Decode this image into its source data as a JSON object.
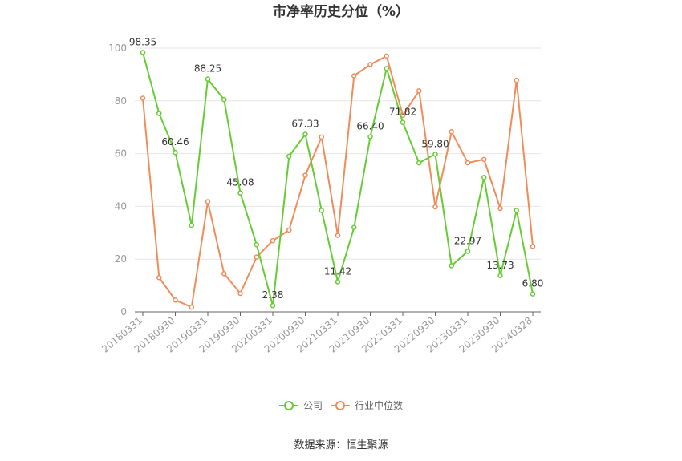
{
  "chart_data": {
    "type": "line",
    "title": "市净率历史分位（%）",
    "xlabel": "",
    "ylabel": "",
    "ylim": [
      0,
      100
    ],
    "yticks": [
      0,
      20,
      40,
      60,
      80,
      100
    ],
    "grid": true,
    "legend_position": "bottom",
    "x": [
      "20180331",
      "20180630",
      "20180930",
      "20181231",
      "20190331",
      "20190630",
      "20190930",
      "20191231",
      "20200331",
      "20200630",
      "20200930",
      "20201231",
      "20210331",
      "20210630",
      "20210930",
      "20211231",
      "20220331",
      "20220630",
      "20220930",
      "20221231",
      "20230331",
      "20230630",
      "20230930",
      "20231231",
      "20240328"
    ],
    "x_tick_labels": [
      "20180331",
      "20180930",
      "20190331",
      "20190930",
      "20200331",
      "20200930",
      "20210331",
      "20210930",
      "20220331",
      "20220930",
      "20230331",
      "20230930",
      "20240328"
    ],
    "series": [
      {
        "name": "公司",
        "color": "#66cc33",
        "values": [
          98.35,
          75.2,
          60.46,
          32.8,
          88.25,
          80.5,
          45.08,
          25.5,
          2.38,
          59.0,
          67.33,
          38.5,
          11.42,
          32.0,
          66.4,
          92.3,
          71.82,
          56.5,
          59.8,
          17.5,
          22.97,
          51.0,
          13.73,
          38.5,
          6.8
        ],
        "labels": {
          "0": "98.35",
          "2": "60.46",
          "4": "88.25",
          "6": "45.08",
          "8": "2.38",
          "10": "67.33",
          "12": "11.42",
          "14": "66.40",
          "16": "71.82",
          "18": "59.80",
          "20": "22.97",
          "22": "13.73",
          "24": "6.80"
        }
      },
      {
        "name": "行业中位数",
        "color": "#f08c5a",
        "values": [
          81.0,
          13.0,
          4.5,
          1.8,
          41.8,
          14.5,
          7.0,
          20.8,
          27.0,
          31.0,
          51.8,
          66.3,
          29.0,
          89.5,
          93.8,
          97.0,
          74.5,
          83.8,
          39.8,
          68.3,
          56.5,
          57.8,
          39.2,
          87.8,
          24.8
        ]
      }
    ]
  },
  "footer": {
    "source": "数据来源：恒生聚源"
  }
}
